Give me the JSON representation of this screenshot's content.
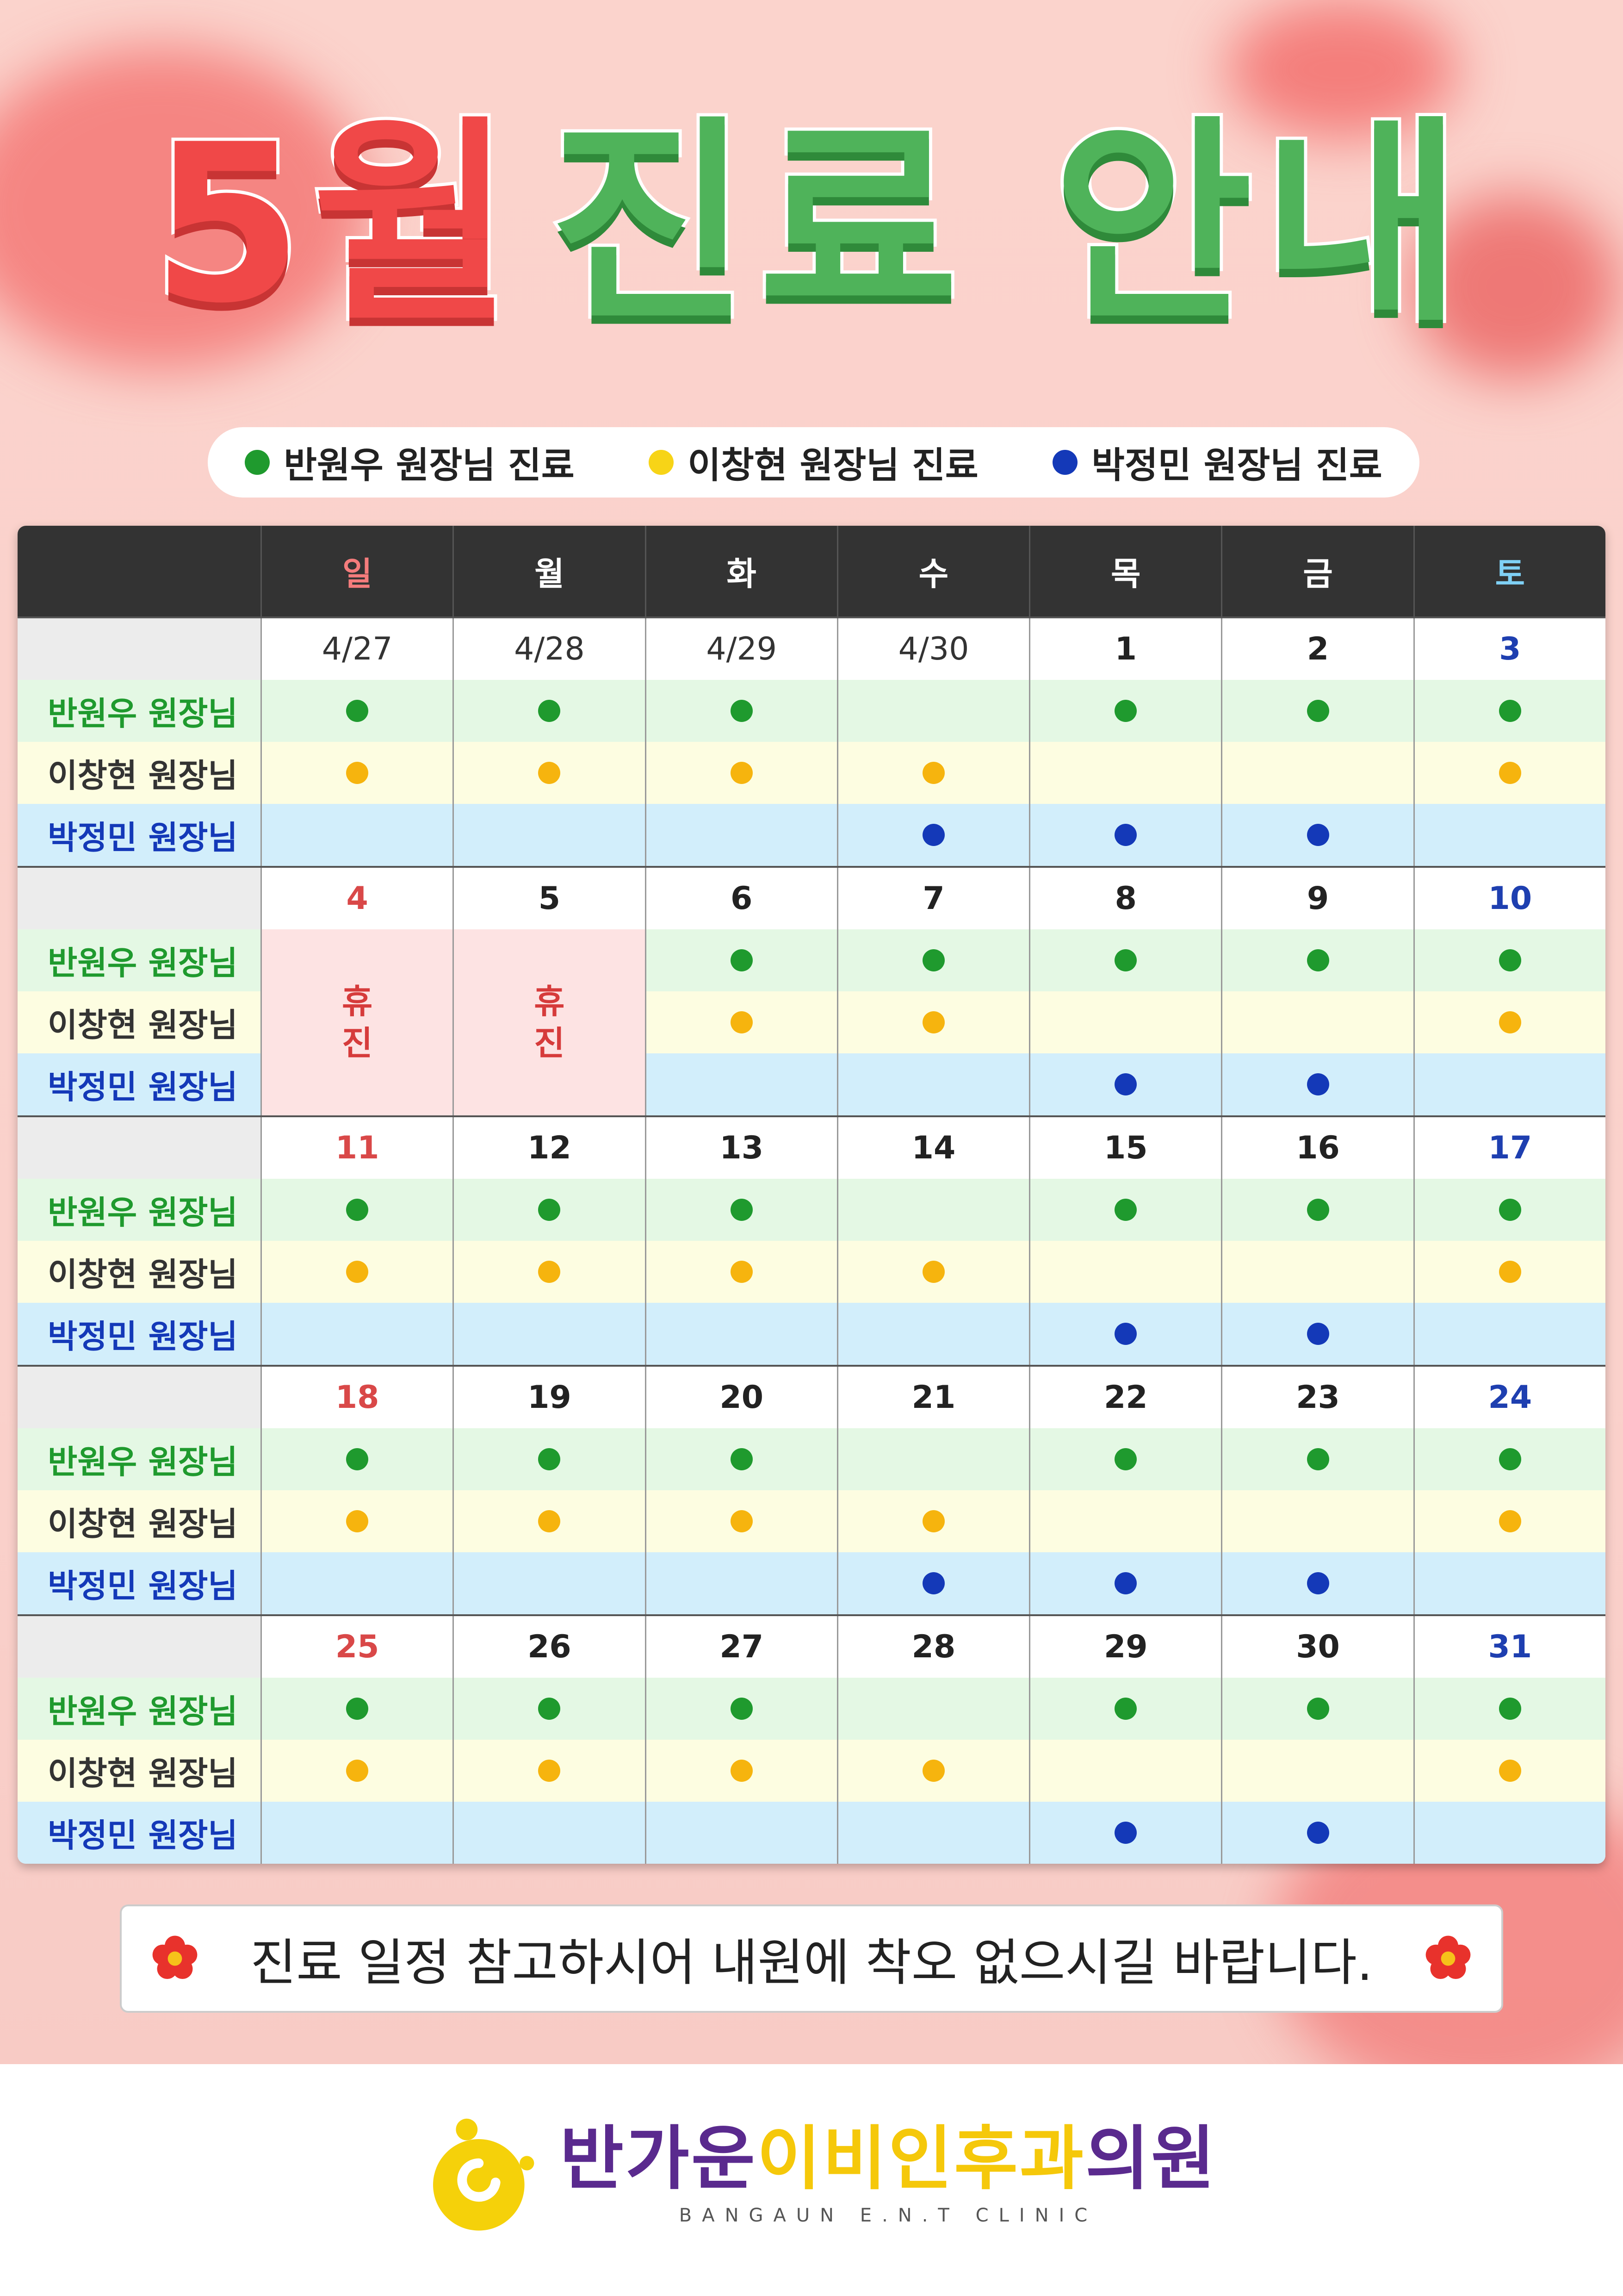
{
  "header": {
    "title_month": "5월",
    "title_rest": "진료 안내"
  },
  "legend": [
    {
      "label": "반원우 원장님 진료",
      "color": "#1f9a2e"
    },
    {
      "label": "이창현 원장님 진료",
      "color": "#f7d417"
    },
    {
      "label": "박정민 원장님 진료",
      "color": "#1439b8"
    }
  ],
  "table": {
    "days": [
      "일",
      "월",
      "화",
      "수",
      "목",
      "금",
      "토"
    ],
    "day_colors": [
      "#f47c7c",
      "#ffffff",
      "#ffffff",
      "#ffffff",
      "#ffffff",
      "#ffffff",
      "#7fd0f5"
    ],
    "doctors": [
      {
        "name": "반원우 원장님",
        "color": "#1f9a2e",
        "dot": "#1f9a2e",
        "row_bg": "#e4f8e4"
      },
      {
        "name": "이창현 원장님",
        "color": "#333333",
        "dot": "#f6b40e",
        "row_bg": "#fdfde1"
      },
      {
        "name": "박정민 원장님",
        "color": "#1439b8",
        "dot": "#1439b8",
        "row_bg": "#d2eefb"
      }
    ],
    "closed_label": "휴진",
    "weeks": [
      {
        "dates": [
          "4/27",
          "4/28",
          "4/29",
          "4/30",
          "1",
          "2",
          "3"
        ],
        "previous_month": [
          true,
          true,
          true,
          true,
          false,
          false,
          false
        ],
        "closed": [],
        "schedule": [
          [
            true,
            true,
            true,
            false,
            true,
            true,
            true
          ],
          [
            true,
            true,
            true,
            true,
            false,
            false,
            true
          ],
          [
            false,
            false,
            false,
            true,
            true,
            true,
            false
          ]
        ]
      },
      {
        "dates": [
          "4",
          "5",
          "6",
          "7",
          "8",
          "9",
          "10"
        ],
        "previous_month": [],
        "closed": [
          0,
          1
        ],
        "schedule": [
          [
            false,
            false,
            true,
            true,
            true,
            true,
            true
          ],
          [
            false,
            false,
            true,
            true,
            false,
            false,
            true
          ],
          [
            false,
            false,
            false,
            false,
            true,
            true,
            false
          ]
        ]
      },
      {
        "dates": [
          "11",
          "12",
          "13",
          "14",
          "15",
          "16",
          "17"
        ],
        "previous_month": [],
        "closed": [],
        "schedule": [
          [
            true,
            true,
            true,
            false,
            true,
            true,
            true
          ],
          [
            true,
            true,
            true,
            true,
            false,
            false,
            true
          ],
          [
            false,
            false,
            false,
            false,
            true,
            true,
            false
          ]
        ]
      },
      {
        "dates": [
          "18",
          "19",
          "20",
          "21",
          "22",
          "23",
          "24"
        ],
        "previous_month": [],
        "closed": [],
        "schedule": [
          [
            true,
            true,
            true,
            false,
            true,
            true,
            true
          ],
          [
            true,
            true,
            true,
            true,
            false,
            false,
            true
          ],
          [
            false,
            false,
            false,
            true,
            true,
            true,
            false
          ]
        ]
      },
      {
        "dates": [
          "25",
          "26",
          "27",
          "28",
          "29",
          "30",
          "31"
        ],
        "previous_month": [],
        "closed": [],
        "schedule": [
          [
            true,
            true,
            true,
            false,
            true,
            true,
            true
          ],
          [
            true,
            true,
            true,
            true,
            false,
            false,
            true
          ],
          [
            false,
            false,
            false,
            false,
            true,
            true,
            false
          ]
        ]
      }
    ]
  },
  "notice": "진료 일정 참고하시어 내원에 착오 없으시길 바랍니다.",
  "footer": {
    "name_parts": [
      {
        "text": "반가운",
        "color": "#5a2a8e"
      },
      {
        "text": "이비인후과",
        "color": "#f5c80a"
      },
      {
        "text": "의원",
        "color": "#5a2a8e"
      }
    ],
    "subtitle": "BANGAUN E.N.T CLINIC"
  }
}
